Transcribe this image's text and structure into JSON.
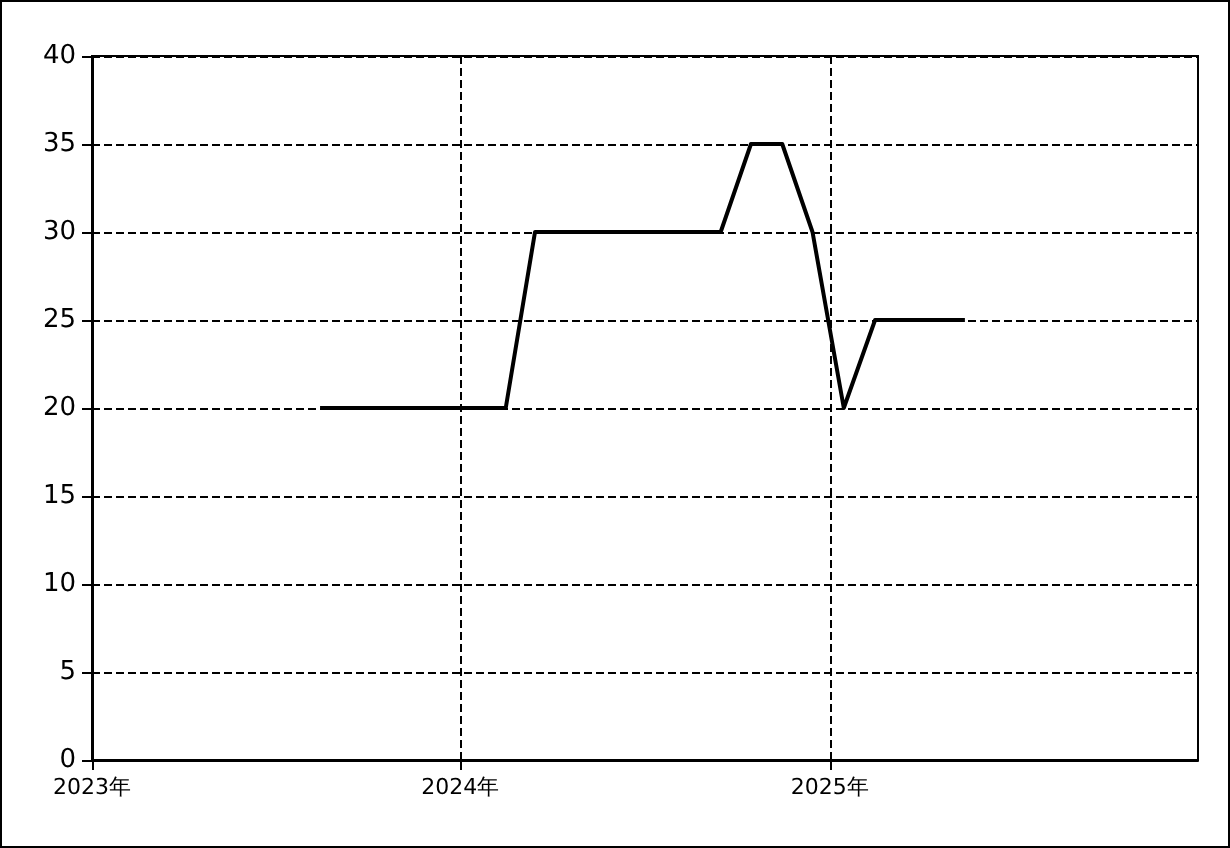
{
  "chart_data": {
    "type": "line",
    "x": [
      "2023-08-15",
      "2024-02-15",
      "2024-03-15",
      "2024-09-15",
      "2024-10-15",
      "2024-11-15",
      "2024-12-15",
      "2025-01-15",
      "2025-02-15",
      "2025-05-15"
    ],
    "series": [
      {
        "color": "#000000",
        "values": [
          20,
          20,
          30,
          30,
          35,
          35,
          30,
          20,
          25,
          25
        ]
      }
    ],
    "xlim": [
      "2023-01-01",
      "2026-01-01"
    ],
    "xticks": [
      {
        "value": "2023-01-01",
        "label": "2023年"
      },
      {
        "value": "2024-01-01",
        "label": "2024年"
      },
      {
        "value": "2025-01-01",
        "label": "2025年"
      }
    ],
    "ylim": [
      0,
      40
    ],
    "yticks": [
      0,
      5,
      10,
      15,
      20,
      25,
      30,
      35,
      40
    ],
    "grid": true,
    "marker": "none",
    "line_style": "solid"
  }
}
